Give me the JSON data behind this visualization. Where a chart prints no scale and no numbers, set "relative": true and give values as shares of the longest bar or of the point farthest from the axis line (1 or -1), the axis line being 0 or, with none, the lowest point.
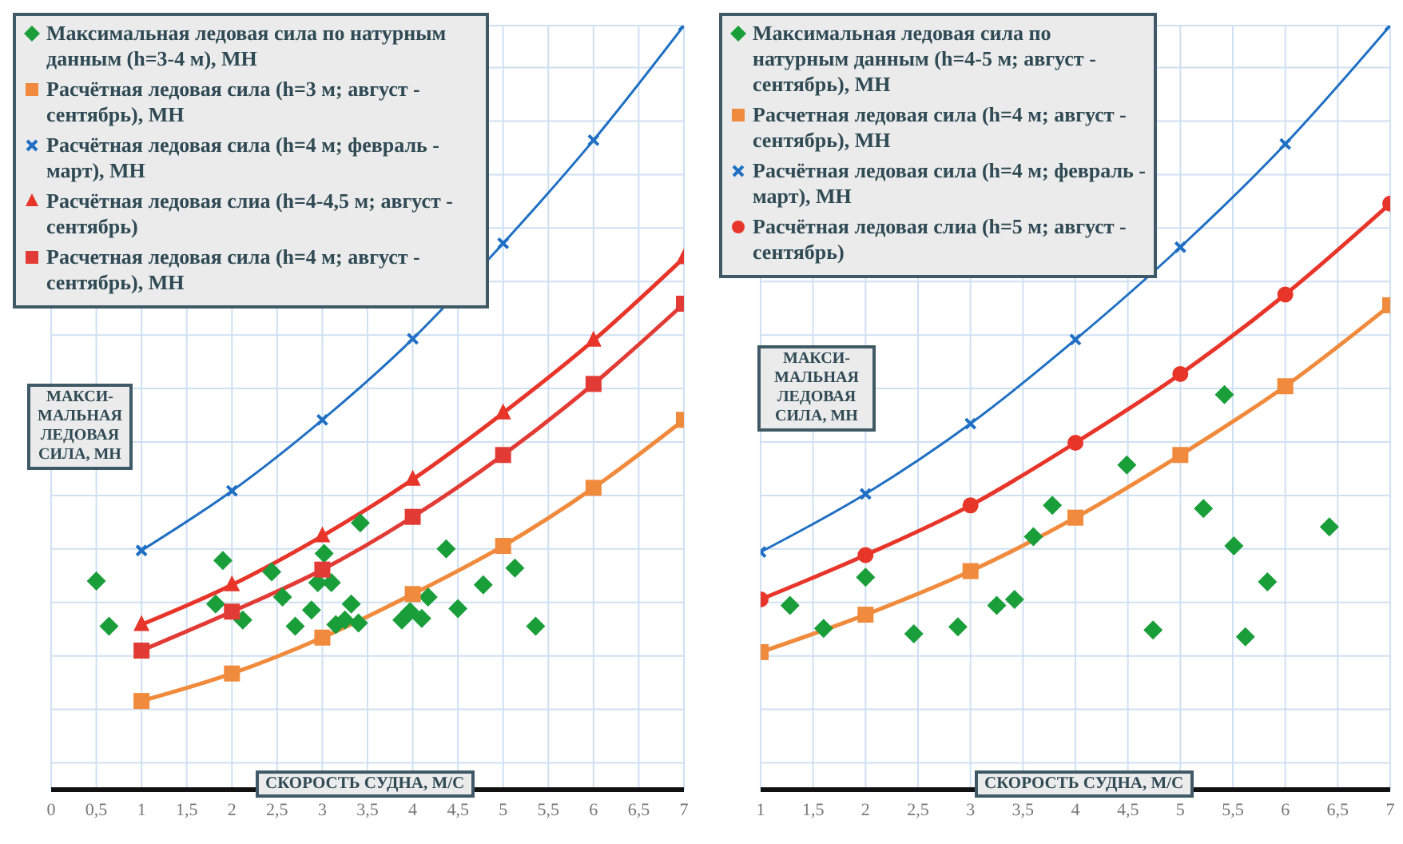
{
  "chart_data": [
    {
      "type": "line",
      "relative": true,
      "xlabel": "СКОРОСТЬ СУДНА, М/С",
      "ylabel": "МАКСИ-МАЛЬНАЯ ЛЕДОВАЯ СИЛА, МН",
      "xlim": [
        0,
        7
      ],
      "xticks": [
        0,
        {
          "value": 0.5,
          "label": "0,5"
        },
        1,
        {
          "value": 1.5,
          "label": "1,5"
        },
        2,
        {
          "value": 2.5,
          "label": "2,5"
        },
        3,
        {
          "value": 3.5,
          "label": "3,5"
        },
        4,
        {
          "value": 4.5,
          "label": "4,5"
        },
        5,
        {
          "value": 5.5,
          "label": "5,5"
        },
        6,
        {
          "value": 6.5,
          "label": "6,5"
        },
        7
      ],
      "grid": true,
      "legend": "top left",
      "tick_labels": "x",
      "series": [
        {
          "type": "scatter",
          "name": "Максимальная ледовая сила по натурным данным (h=3-4 м), МН",
          "color": "#1a9e3a",
          "marker": "diamond",
          "x": [
            0.5,
            0.64,
            1.9,
            1.82,
            2.12,
            2.44,
            2.56,
            2.7,
            2.88,
            3.02,
            2.95,
            3.1,
            3.32,
            3.15,
            3.25,
            3.4,
            3.42,
            3.88,
            3.97,
            4.1,
            4.17,
            4.37,
            4.5,
            4.78,
            5.13,
            5.36
          ],
          "values": [
            0.273,
            0.214,
            0.3,
            0.243,
            0.222,
            0.285,
            0.252,
            0.214,
            0.235,
            0.309,
            0.271,
            0.271,
            0.243,
            0.216,
            0.222,
            0.218,
            0.349,
            0.222,
            0.233,
            0.224,
            0.252,
            0.315,
            0.237,
            0.268,
            0.29,
            0.214
          ]
        },
        {
          "name": "Расчётная ледовая сила (h=3 м; август - сентябрь), МН",
          "color": "#f08a3c",
          "marker": "square",
          "x": [
            1,
            2,
            3,
            4,
            5,
            6,
            7
          ],
          "values": [
            0.116,
            0.152,
            0.199,
            0.256,
            0.319,
            0.395,
            0.484
          ]
        },
        {
          "name": "Расчётная ледовая сила (h=4 м; февраль - март), МН",
          "color": "#1f6fc4",
          "marker": "cross",
          "x": [
            1,
            2,
            3,
            4,
            5,
            6,
            7
          ],
          "values": [
            0.313,
            0.391,
            0.484,
            0.59,
            0.715,
            0.85,
            1
          ]
        },
        {
          "name": "Расчётная ледовая слиа (h=4-4,5 м; август - сентябрь)",
          "color": "#e8352a",
          "marker": "triangle",
          "x": [
            1,
            2,
            3,
            4,
            5,
            6,
            7
          ],
          "values": [
            0.216,
            0.268,
            0.332,
            0.406,
            0.493,
            0.588,
            0.696
          ]
        },
        {
          "name": "Расчетная ледовая сила (h=4 м; август - сентябрь), МН",
          "color": "#e23b35",
          "marker": "square",
          "x": [
            1,
            2,
            3,
            4,
            5,
            6,
            7
          ],
          "values": [
            0.182,
            0.233,
            0.288,
            0.357,
            0.438,
            0.531,
            0.636
          ]
        }
      ]
    },
    {
      "type": "line",
      "relative": true,
      "xlabel": "СКОРОСТЬ СУДНА, М/С",
      "ylabel": "МАКСИ-МАЛЬНАЯ ЛЕДОВАЯ СИЛА, МН",
      "xlim": [
        1,
        7
      ],
      "xticks": [
        1,
        {
          "value": 1.5,
          "label": "1,5"
        },
        2,
        {
          "value": 2.5,
          "label": "2,5"
        },
        3,
        {
          "value": 3.5,
          "label": "3,5"
        },
        4,
        {
          "value": 4.5,
          "label": "4,5"
        },
        5,
        {
          "value": 5.5,
          "label": "5,5"
        },
        6,
        {
          "value": 6.5,
          "label": "6,5"
        },
        7
      ],
      "grid": true,
      "legend": "top left",
      "tick_labels": "x",
      "series": [
        {
          "type": "scatter",
          "name": "Максимальная ледовая сила по натурным данным (h=4-5 м; август - сентябрь), МН",
          "color": "#1a9e3a",
          "marker": "diamond",
          "x": [
            1.28,
            1.6,
            2.0,
            2.46,
            2.88,
            3.25,
            3.42,
            3.6,
            3.78,
            4.49,
            4.74,
            5.22,
            5.42,
            5.51,
            5.62,
            5.83,
            6.42
          ],
          "values": [
            0.241,
            0.211,
            0.278,
            0.204,
            0.213,
            0.241,
            0.249,
            0.331,
            0.372,
            0.425,
            0.209,
            0.368,
            0.517,
            0.319,
            0.2,
            0.272,
            0.344
          ]
        },
        {
          "name": "Расчетная ледовая сила (h=4 м; август - сентябрь), МН",
          "color": "#f08a3c",
          "marker": "square",
          "x": [
            1,
            2,
            3,
            4,
            5,
            6,
            7
          ],
          "values": [
            0.18,
            0.229,
            0.286,
            0.356,
            0.438,
            0.528,
            0.634
          ]
        },
        {
          "name": "Расчётная ледовая сила (h=4 м; февраль - март), МН",
          "color": "#1f6fc4",
          "marker": "cross",
          "x": [
            1,
            2,
            3,
            4,
            5,
            6,
            7
          ],
          "values": [
            0.311,
            0.387,
            0.479,
            0.589,
            0.71,
            0.845,
            1
          ]
        },
        {
          "name": "Расчётная ледовая слиа (h=5 м; август - сентябрь)",
          "color": "#e8352a",
          "marker": "circle",
          "x": [
            1,
            2,
            3,
            4,
            5,
            6,
            7
          ],
          "values": [
            0.249,
            0.307,
            0.372,
            0.454,
            0.544,
            0.648,
            0.767
          ]
        }
      ]
    }
  ]
}
